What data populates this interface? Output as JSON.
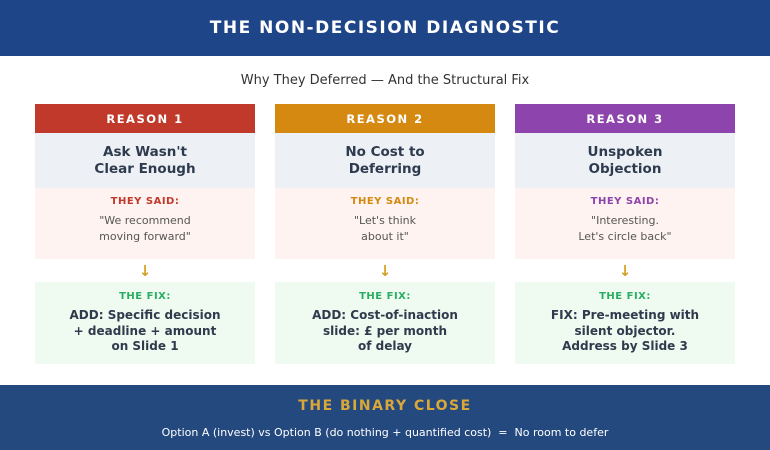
{
  "header": {
    "title": "THE NON-DECISION DIAGNOSTIC",
    "subtitle": "Why They Deferred — And the Structural Fix",
    "bg": "#1e4588"
  },
  "columns": [
    {
      "header": "REASON 1",
      "color": "#c0392b",
      "title_lines": [
        "Ask Wasn't",
        "Clear Enough"
      ],
      "said_label": "THEY SAID:",
      "quote_lines": [
        "\"We recommend",
        "moving forward\""
      ],
      "fix_label": "THE FIX:",
      "fix_lines": [
        "ADD: Specific decision",
        "+ deadline + amount",
        "on Slide 1"
      ]
    },
    {
      "header": "REASON 2",
      "color": "#d68910",
      "title_lines": [
        "No Cost to",
        "Deferring"
      ],
      "said_label": "THEY SAID:",
      "quote_lines": [
        "\"Let's think",
        "about it\""
      ],
      "fix_label": "THE FIX:",
      "fix_lines": [
        "ADD: Cost-of-inaction",
        "slide: £ per month",
        "of delay"
      ]
    },
    {
      "header": "REASON 3",
      "color": "#8e44ad",
      "title_lines": [
        "Unspoken",
        "Objection"
      ],
      "said_label": "THEY SAID:",
      "quote_lines": [
        "\"Interesting.",
        "Let's circle back\""
      ],
      "fix_label": "THE FIX:",
      "fix_lines": [
        "FIX: Pre-meeting with",
        "silent objector.",
        "Address by Slide 3"
      ]
    }
  ],
  "icons": {
    "arrow_down": "↓"
  },
  "colors": {
    "arrow_gold": "#d4a024",
    "fix_green": "#27ae60",
    "footer_bg": "#24497f",
    "footer_gold": "#dba838"
  },
  "footer": {
    "title": "THE BINARY CLOSE",
    "subtitle": "Option A (invest) vs Option B (do nothing + quantified cost)  =  No room to defer"
  }
}
